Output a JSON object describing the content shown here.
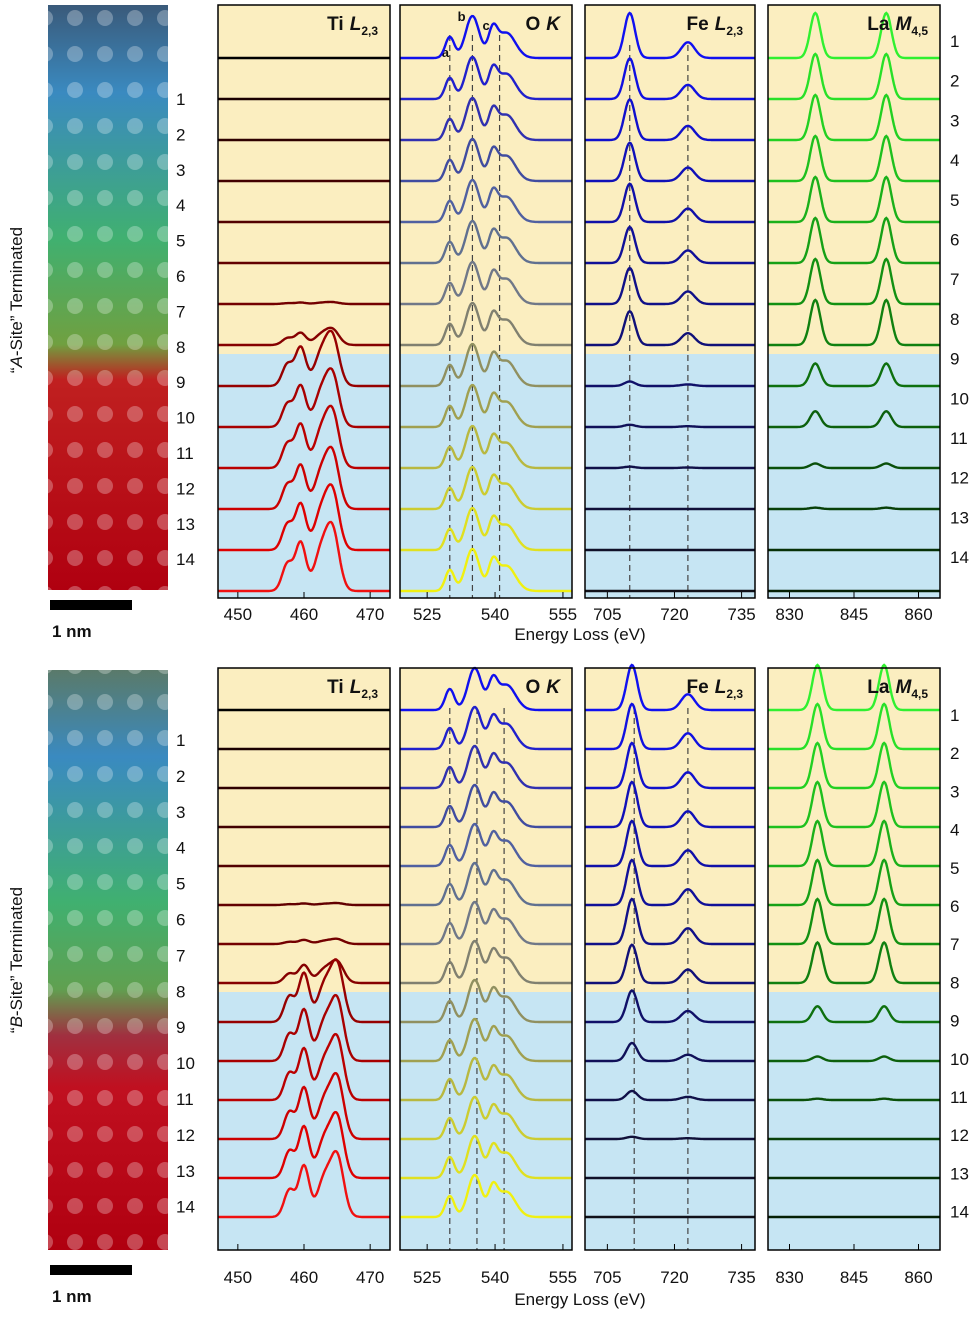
{
  "figures": [
    {
      "ylabel": {
        "open": "“",
        "italic": "A",
        "rest": "-Site” Terminated"
      },
      "scalebar": "1 nm",
      "xlabel": "Energy Loss (eV)",
      "layers": [
        "1",
        "2",
        "3",
        "4",
        "5",
        "6",
        "7",
        "8",
        "9",
        "10",
        "11",
        "12",
        "13",
        "14"
      ],
      "panels": [
        {
          "title": {
            "element": "Ti",
            "edge": "L",
            "sub": "2,3"
          },
          "xlim": [
            447,
            473
          ],
          "xticks": [
            450,
            460,
            470
          ],
          "peaks": [
            {
              "x": 457.5,
              "w": 0.8,
              "h": 0.45
            },
            {
              "x": 459.5,
              "w": 0.8,
              "h": 0.8
            },
            {
              "x": 462.5,
              "w": 1,
              "h": 0.6
            },
            {
              "x": 464.3,
              "w": 1,
              "h": 1
            }
          ],
          "markers": [],
          "colors": [
            "#000000",
            "#1a0000",
            "#2e0000",
            "#420000",
            "#520000",
            "#620000",
            "#730000",
            "#850000",
            "#960000",
            "#a80000",
            "#ba0000",
            "#cc0000",
            "#de0000",
            "#f01010"
          ],
          "values": [
            0,
            0,
            0,
            0,
            0,
            0,
            0.03,
            0.25,
            0.8,
            0.85,
            0.9,
            0.9,
            0.95,
            1
          ]
        },
        {
          "title": {
            "element": "O",
            "edge": "K",
            "sub": ""
          },
          "xlim": [
            519,
            557
          ],
          "xticks": [
            525,
            540,
            555
          ],
          "peaks": [
            {
              "x": 530,
              "w": 1,
              "h": 0.5
            },
            {
              "x": 535,
              "w": 1.5,
              "h": 1
            },
            {
              "x": 539.5,
              "w": 1,
              "h": 0.6
            },
            {
              "x": 542.5,
              "w": 2,
              "h": 0.6
            }
          ],
          "markers": [
            530,
            535,
            541
          ],
          "annotations": [
            {
              "text": "a",
              "x": 530
            },
            {
              "text": "b",
              "x": 533.5
            },
            {
              "text": "c",
              "x": 539
            }
          ],
          "colors": [
            "#1010ee",
            "#2020cc",
            "#3030b0",
            "#404ca0",
            "#5060a0",
            "#607090",
            "#707888",
            "#808070",
            "#909060",
            "#a0a050",
            "#b8b840",
            "#cccc30",
            "#e0e020",
            "#f0f010"
          ],
          "values": [
            1,
            1,
            1,
            1,
            1,
            1,
            1,
            1,
            1,
            1,
            1,
            1,
            1,
            1
          ]
        },
        {
          "title": {
            "element": "Fe",
            "edge": "L",
            "sub": "2,3"
          },
          "xlim": [
            700,
            738
          ],
          "xticks": [
            705,
            720,
            735
          ],
          "peaks": [
            {
              "x": 710,
              "w": 1.2,
              "h": 1
            },
            {
              "x": 723,
              "w": 1.5,
              "h": 0.35
            }
          ],
          "markers": [
            710,
            723
          ],
          "colors": [
            "#1010f0",
            "#1010e0",
            "#1010cc",
            "#1010b8",
            "#1010a8",
            "#101098",
            "#101088",
            "#101078",
            "#101068",
            "#101058",
            "#101048",
            "#101038",
            "#101028",
            "#101018"
          ],
          "values": [
            1,
            0.9,
            0.9,
            0.85,
            0.85,
            0.8,
            0.8,
            0.75,
            0.1,
            0.05,
            0.03,
            0,
            0,
            0
          ]
        },
        {
          "title": {
            "element": "La",
            "edge": "M",
            "sub": "4,5"
          },
          "xlim": [
            825,
            865
          ],
          "xticks": [
            830,
            845,
            860
          ],
          "peaks": [
            {
              "x": 836,
              "w": 1.2,
              "h": 1
            },
            {
              "x": 852.5,
              "w": 1.2,
              "h": 1
            }
          ],
          "markers": [],
          "colors": [
            "#30f030",
            "#28e028",
            "#22d022",
            "#1ec01e",
            "#1ab01a",
            "#16a016",
            "#129012",
            "#108010",
            "#0e700e",
            "#0c600c",
            "#0a500a",
            "#084008",
            "#063006",
            "#042004"
          ],
          "values": [
            1,
            1,
            1,
            1,
            1,
            1,
            1,
            1,
            0.5,
            0.35,
            0.1,
            0.03,
            0,
            0
          ]
        }
      ]
    },
    {
      "ylabel": {
        "open": "“",
        "italic": "B",
        "rest": "-Site” Terminated"
      },
      "scalebar": "1 nm",
      "xlabel": "Energy Loss (eV)",
      "layers": [
        "1",
        "2",
        "3",
        "4",
        "5",
        "6",
        "7",
        "8",
        "9",
        "10",
        "11",
        "12",
        "13",
        "14"
      ],
      "panels": [
        {
          "title": {
            "element": "Ti",
            "edge": "L",
            "sub": "2,3"
          },
          "xlim": [
            447,
            473
          ],
          "xticks": [
            450,
            460,
            470
          ],
          "peaks": [
            {
              "x": 457.8,
              "w": 0.8,
              "h": 0.45
            },
            {
              "x": 460,
              "w": 0.8,
              "h": 0.85
            },
            {
              "x": 463,
              "w": 1,
              "h": 0.6
            },
            {
              "x": 465,
              "w": 1,
              "h": 1
            }
          ],
          "markers": [],
          "colors": [
            "#000000",
            "#1a0000",
            "#2e0000",
            "#420000",
            "#520000",
            "#620000",
            "#730000",
            "#850000",
            "#960000",
            "#a80000",
            "#ba0000",
            "#cc0000",
            "#de0000",
            "#f01010"
          ],
          "values": [
            0,
            0,
            0,
            0,
            0,
            0.03,
            0.08,
            0.35,
            0.95,
            1,
            1,
            1,
            1,
            1
          ]
        },
        {
          "title": {
            "element": "O",
            "edge": "K",
            "sub": ""
          },
          "xlim": [
            519,
            557
          ],
          "xticks": [
            525,
            540,
            555
          ],
          "peaks": [
            {
              "x": 530,
              "w": 1,
              "h": 0.5
            },
            {
              "x": 535.5,
              "w": 1.5,
              "h": 1
            },
            {
              "x": 539.5,
              "w": 1,
              "h": 0.6
            },
            {
              "x": 542.5,
              "w": 2,
              "h": 0.6
            }
          ],
          "markers": [
            530,
            536,
            542
          ],
          "colors": [
            "#1010ee",
            "#2020cc",
            "#3030b0",
            "#404ca0",
            "#5060a0",
            "#607090",
            "#707888",
            "#808070",
            "#909060",
            "#a0a050",
            "#b8b840",
            "#cccc30",
            "#e0e020",
            "#f0f010"
          ],
          "values": [
            1,
            1,
            1,
            1,
            1,
            1,
            1,
            1,
            1,
            1,
            1,
            1,
            1,
            1
          ]
        },
        {
          "title": {
            "element": "Fe",
            "edge": "L",
            "sub": "2,3"
          },
          "xlim": [
            700,
            738
          ],
          "xticks": [
            705,
            720,
            735
          ],
          "peaks": [
            {
              "x": 710.5,
              "w": 1.2,
              "h": 1
            },
            {
              "x": 723,
              "w": 1.5,
              "h": 0.35
            }
          ],
          "markers": [
            711,
            723
          ],
          "colors": [
            "#1010f0",
            "#1010e0",
            "#1010cc",
            "#1010b8",
            "#1010a8",
            "#101098",
            "#101088",
            "#101078",
            "#101068",
            "#101058",
            "#101048",
            "#101038",
            "#101028",
            "#101018"
          ],
          "values": [
            1,
            1,
            1,
            1,
            1,
            1,
            1,
            0.85,
            0.7,
            0.4,
            0.2,
            0.05,
            0,
            0
          ]
        },
        {
          "title": {
            "element": "La",
            "edge": "M",
            "sub": "4,5"
          },
          "xlim": [
            825,
            865
          ],
          "xticks": [
            830,
            845,
            860
          ],
          "peaks": [
            {
              "x": 836.5,
              "w": 1.2,
              "h": 1
            },
            {
              "x": 852,
              "w": 1.2,
              "h": 1
            }
          ],
          "markers": [],
          "colors": [
            "#30f030",
            "#28e028",
            "#22d022",
            "#1ec01e",
            "#1ab01a",
            "#16a016",
            "#129012",
            "#108010",
            "#0e700e",
            "#0c600c",
            "#0a500a",
            "#084008",
            "#063006",
            "#042004"
          ],
          "values": [
            1,
            1,
            1,
            1,
            1,
            1,
            1,
            0.9,
            0.35,
            0.1,
            0.03,
            0,
            0,
            0
          ]
        }
      ]
    }
  ]
}
